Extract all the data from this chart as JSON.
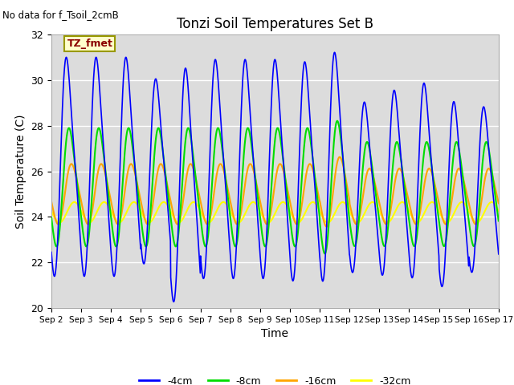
{
  "title": "Tonzi Soil Temperatures Set B",
  "xlabel": "Time",
  "ylabel": "Soil Temperature (C)",
  "note": "No data for f_Tsoil_2cmB",
  "legend_label": "TZ_fmet",
  "ylim": [
    20,
    32
  ],
  "yticks": [
    20,
    22,
    24,
    26,
    28,
    30,
    32
  ],
  "x_tick_labels": [
    "Sep 2",
    "Sep 3",
    "Sep 4",
    "Sep 5",
    "Sep 6",
    "Sep 7",
    "Sep 8",
    "Sep 9",
    "Sep 10",
    "Sep 11",
    "Sep 12",
    "Sep 13",
    "Sep 14",
    "Sep 15",
    "Sep 16",
    "Sep 17"
  ],
  "colors": {
    "-4cm": "#0000FF",
    "-8cm": "#00DD00",
    "-16cm": "#FFA500",
    "-32cm": "#FFFF00"
  },
  "background_color": "#DCDCDC",
  "fig_background": "#FFFFFF",
  "n_days": 15,
  "samples_per_day": 96
}
